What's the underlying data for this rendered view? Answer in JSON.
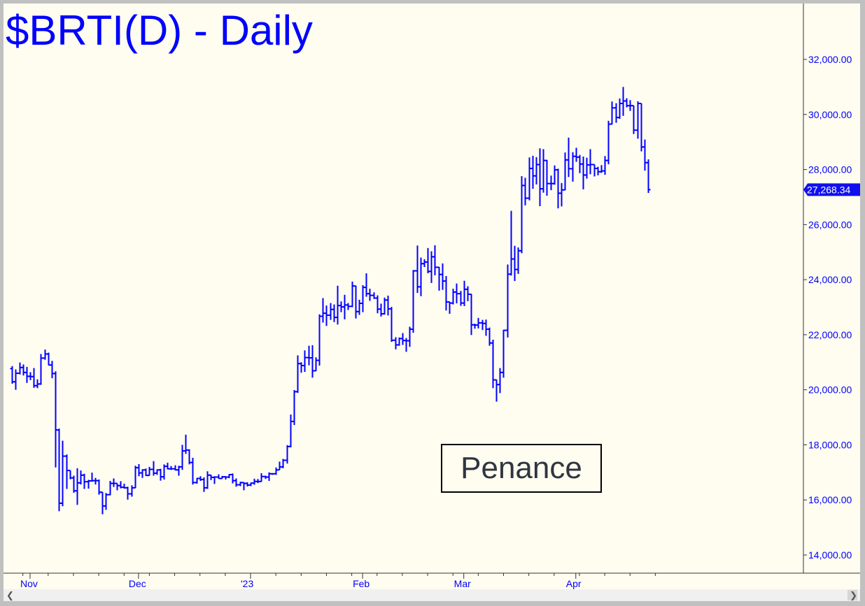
{
  "title": "$BRTI(D) - Daily",
  "annotation": "Penance",
  "colors": {
    "bars": "#0000ff",
    "background": "#fffcf0",
    "axis_text": "#0000ff",
    "last_price_tag": "#1010ee"
  },
  "scrollbar": {
    "left_icon": "chevron-left-icon",
    "right_icon": "chevron-right-icon"
  },
  "chart_data": {
    "type": "ohlc",
    "title": "$BRTI(D) - Daily",
    "ylim": [
      13000,
      34000
    ],
    "y_ticks": [
      "14,000.00",
      "16,000.00",
      "18,000.00",
      "20,000.00",
      "22,000.00",
      "24,000.00",
      "26,000.00",
      "28,000.00",
      "30,000.00",
      "32,000.00"
    ],
    "x_ticks": [
      {
        "label": "Nov",
        "date": "2022-11-01"
      },
      {
        "label": "Dec",
        "date": "2022-12-01"
      },
      {
        "label": "'23",
        "date": "2023-01-01"
      },
      {
        "label": "Feb",
        "date": "2023-02-01"
      },
      {
        "label": "Mar",
        "date": "2023-03-01"
      },
      {
        "label": "Apr",
        "date": "2023-04-01"
      }
    ],
    "grid": false,
    "last_price": "27,268.34",
    "bars_columns": [
      "open",
      "high",
      "low",
      "close"
    ],
    "start_date": "2022-10-27",
    "bars": [
      [
        20770,
        20860,
        20220,
        20290
      ],
      [
        20290,
        20740,
        20000,
        20600
      ],
      [
        20600,
        20990,
        20560,
        20810
      ],
      [
        20810,
        20920,
        20520,
        20630
      ],
      [
        20630,
        20830,
        20250,
        20490
      ],
      [
        20490,
        20640,
        20350,
        20480
      ],
      [
        20480,
        20790,
        20070,
        20150
      ],
      [
        20150,
        20380,
        20060,
        20210
      ],
      [
        20210,
        21300,
        20180,
        21150
      ],
      [
        21150,
        21460,
        21090,
        21300
      ],
      [
        21300,
        21350,
        20890,
        20900
      ],
      [
        20900,
        21050,
        20420,
        20590
      ],
      [
        20590,
        20670,
        17180,
        18540
      ],
      [
        18540,
        18590,
        15590,
        15880
      ],
      [
        15880,
        18150,
        15770,
        17590
      ],
      [
        17590,
        17650,
        16400,
        17070
      ],
      [
        17070,
        17070,
        16750,
        16800
      ],
      [
        16800,
        16880,
        16260,
        16330
      ],
      [
        16330,
        17150,
        15820,
        16620
      ],
      [
        16620,
        17070,
        16560,
        16900
      ],
      [
        16900,
        16950,
        16400,
        16660
      ],
      [
        16660,
        16730,
        16410,
        16690
      ],
      [
        16690,
        16990,
        16660,
        16700
      ],
      [
        16700,
        16800,
        16560,
        16700
      ],
      [
        16700,
        16740,
        16190,
        16280
      ],
      [
        16280,
        16280,
        15480,
        15780
      ],
      [
        15780,
        16250,
        15640,
        16190
      ],
      [
        16190,
        16690,
        16170,
        16600
      ],
      [
        16600,
        16780,
        16470,
        16600
      ],
      [
        16600,
        16600,
        16350,
        16520
      ],
      [
        16520,
        16680,
        16420,
        16460
      ],
      [
        16460,
        16590,
        16410,
        16440
      ],
      [
        16440,
        16480,
        16010,
        16220
      ],
      [
        16220,
        16530,
        16120,
        16440
      ],
      [
        16440,
        17240,
        16430,
        17170
      ],
      [
        17170,
        17300,
        16860,
        16980
      ],
      [
        16980,
        17110,
        16800,
        17090
      ],
      [
        17090,
        17140,
        16870,
        16890
      ],
      [
        16890,
        17200,
        16880,
        17110
      ],
      [
        17110,
        17410,
        16880,
        16970
      ],
      [
        16970,
        17110,
        16910,
        17090
      ],
      [
        17090,
        17130,
        16700,
        16840
      ],
      [
        16840,
        17290,
        16740,
        17220
      ],
      [
        17220,
        17350,
        17110,
        17130
      ],
      [
        17130,
        17230,
        17090,
        17130
      ],
      [
        17130,
        17260,
        17070,
        17090
      ],
      [
        17090,
        17240,
        16880,
        17200
      ],
      [
        17200,
        18000,
        17090,
        17780
      ],
      [
        17780,
        18370,
        17670,
        17810
      ],
      [
        17810,
        17840,
        17290,
        17360
      ],
      [
        17360,
        17530,
        16560,
        16630
      ],
      [
        16630,
        16800,
        16590,
        16780
      ],
      [
        16780,
        16860,
        16690,
        16740
      ],
      [
        16740,
        16820,
        16290,
        16440
      ],
      [
        16440,
        17040,
        16400,
        16900
      ],
      [
        16900,
        16910,
        16720,
        16820
      ],
      [
        16820,
        16860,
        16580,
        16830
      ],
      [
        16830,
        16930,
        16770,
        16780
      ],
      [
        16780,
        16870,
        16770,
        16840
      ],
      [
        16840,
        16860,
        16740,
        16830
      ],
      [
        16830,
        16940,
        16790,
        16920
      ],
      [
        16920,
        16960,
        16600,
        16700
      ],
      [
        16700,
        16780,
        16480,
        16550
      ],
      [
        16550,
        16660,
        16500,
        16630
      ],
      [
        16630,
        16640,
        16350,
        16600
      ],
      [
        16600,
        16640,
        16490,
        16540
      ],
      [
        16540,
        16630,
        16500,
        16610
      ],
      [
        16610,
        16770,
        16550,
        16670
      ],
      [
        16670,
        16760,
        16610,
        16670
      ],
      [
        16670,
        16970,
        16660,
        16850
      ],
      [
        16850,
        16880,
        16760,
        16830
      ],
      [
        16830,
        17000,
        16690,
        16950
      ],
      [
        16950,
        16970,
        16910,
        16950
      ],
      [
        16950,
        17180,
        16910,
        17090
      ],
      [
        17090,
        17390,
        17090,
        17200
      ],
      [
        17200,
        17490,
        17150,
        17440
      ],
      [
        17440,
        17990,
        17320,
        17940
      ],
      [
        17940,
        19100,
        17910,
        18850
      ],
      [
        18850,
        19990,
        18720,
        19930
      ],
      [
        19930,
        21250,
        19890,
        20950
      ],
      [
        20950,
        21000,
        20620,
        20880
      ],
      [
        20880,
        21430,
        20650,
        21170
      ],
      [
        21170,
        21600,
        20890,
        21160
      ],
      [
        21160,
        21620,
        20440,
        20690
      ],
      [
        20690,
        21180,
        20680,
        21070
      ],
      [
        21070,
        22740,
        20880,
        22670
      ],
      [
        22670,
        23330,
        22440,
        22780
      ],
      [
        22780,
        23060,
        22320,
        22710
      ],
      [
        22710,
        23150,
        22540,
        22920
      ],
      [
        22920,
        23100,
        22460,
        22630
      ],
      [
        22630,
        23780,
        22370,
        23060
      ],
      [
        23060,
        23210,
        22820,
        23010
      ],
      [
        23010,
        23450,
        22560,
        23080
      ],
      [
        23080,
        23150,
        22900,
        23030
      ],
      [
        23030,
        23930,
        23000,
        23770
      ],
      [
        23770,
        23780,
        22590,
        22840
      ],
      [
        22840,
        23270,
        22720,
        23140
      ],
      [
        23140,
        23800,
        22820,
        23720
      ],
      [
        23720,
        24230,
        23380,
        23490
      ],
      [
        23490,
        23670,
        23230,
        23430
      ],
      [
        23430,
        23540,
        23300,
        23330
      ],
      [
        23330,
        23430,
        22780,
        22930
      ],
      [
        22930,
        23130,
        22660,
        22760
      ],
      [
        22760,
        23350,
        22730,
        23260
      ],
      [
        23260,
        23420,
        22700,
        22940
      ],
      [
        22940,
        23010,
        21740,
        21800
      ],
      [
        21800,
        21910,
        21470,
        21630
      ],
      [
        21630,
        21900,
        21600,
        21860
      ],
      [
        21860,
        22060,
        21630,
        21790
      ],
      [
        21790,
        21880,
        21380,
        21780
      ],
      [
        21780,
        22290,
        21560,
        22200
      ],
      [
        22200,
        24350,
        22070,
        24320
      ],
      [
        24320,
        25240,
        23520,
        23740
      ],
      [
        23740,
        24800,
        23400,
        24580
      ],
      [
        24580,
        24740,
        24460,
        24640
      ],
      [
        24640,
        25150,
        24230,
        24300
      ],
      [
        24300,
        25030,
        23880,
        24830
      ],
      [
        24830,
        25250,
        24160,
        24450
      ],
      [
        24450,
        24460,
        23600,
        24190
      ],
      [
        24190,
        24590,
        23630,
        23950
      ],
      [
        23950,
        24130,
        22880,
        23190
      ],
      [
        23190,
        23200,
        22760,
        23150
      ],
      [
        23150,
        23670,
        23100,
        23550
      ],
      [
        23550,
        23860,
        23140,
        23490
      ],
      [
        23490,
        23590,
        23050,
        23150
      ],
      [
        23150,
        23960,
        23040,
        23650
      ],
      [
        23650,
        23760,
        23220,
        23470
      ],
      [
        23470,
        23480,
        21990,
        22360
      ],
      [
        22360,
        22400,
        22220,
        22350
      ],
      [
        22350,
        22610,
        22230,
        22430
      ],
      [
        22430,
        22540,
        22170,
        22410
      ],
      [
        22410,
        22550,
        21960,
        22200
      ],
      [
        22200,
        22260,
        21600,
        21700
      ],
      [
        21700,
        21820,
        20060,
        20360
      ],
      [
        20360,
        20370,
        19570,
        20190
      ],
      [
        20190,
        20790,
        19880,
        20630
      ],
      [
        20630,
        22180,
        20440,
        22160
      ],
      [
        22160,
        24550,
        21900,
        24200
      ],
      [
        24200,
        26500,
        24150,
        24750
      ],
      [
        24750,
        25230,
        23950,
        24370
      ],
      [
        24370,
        25170,
        24210,
        25050
      ],
      [
        25050,
        27760,
        24960,
        27420
      ],
      [
        27420,
        27700,
        26700,
        26960
      ],
      [
        26960,
        28440,
        26880,
        28040
      ],
      [
        28040,
        28500,
        27300,
        27770
      ],
      [
        27770,
        28450,
        27460,
        28180
      ],
      [
        28180,
        28770,
        26670,
        27300
      ],
      [
        27300,
        28740,
        27160,
        28330
      ],
      [
        28330,
        28350,
        27050,
        27490
      ],
      [
        27490,
        27780,
        27250,
        27490
      ],
      [
        27490,
        28150,
        27450,
        27990
      ],
      [
        27990,
        28030,
        26590,
        27140
      ],
      [
        27140,
        27510,
        26660,
        27260
      ],
      [
        27260,
        28620,
        27250,
        28350
      ],
      [
        28350,
        29160,
        27730,
        28030
      ],
      [
        28030,
        28630,
        27560,
        28480
      ],
      [
        28480,
        28790,
        28280,
        28450
      ],
      [
        28450,
        28530,
        27870,
        28200
      ],
      [
        28200,
        28470,
        27280,
        27800
      ],
      [
        27800,
        28430,
        27670,
        28170
      ],
      [
        28170,
        28740,
        27830,
        28180
      ],
      [
        28180,
        28180,
        27750,
        28040
      ],
      [
        28040,
        28100,
        27790,
        27920
      ],
      [
        27920,
        28160,
        27880,
        27950
      ],
      [
        27950,
        28490,
        27810,
        28330
      ],
      [
        28330,
        29770,
        28190,
        29650
      ],
      [
        29650,
        30470,
        29640,
        30240
      ],
      [
        30240,
        30410,
        29700,
        29890
      ],
      [
        29890,
        30580,
        29840,
        30400
      ],
      [
        30400,
        31000,
        29950,
        30490
      ],
      [
        30490,
        30590,
        30260,
        30320
      ],
      [
        30320,
        30520,
        30130,
        30320
      ],
      [
        30320,
        30320,
        29290,
        29430
      ],
      [
        29430,
        30480,
        29120,
        30400
      ],
      [
        30400,
        30400,
        28660,
        28820
      ],
      [
        28820,
        29090,
        27960,
        28250
      ],
      [
        28250,
        28370,
        27150,
        27268.34
      ]
    ]
  }
}
